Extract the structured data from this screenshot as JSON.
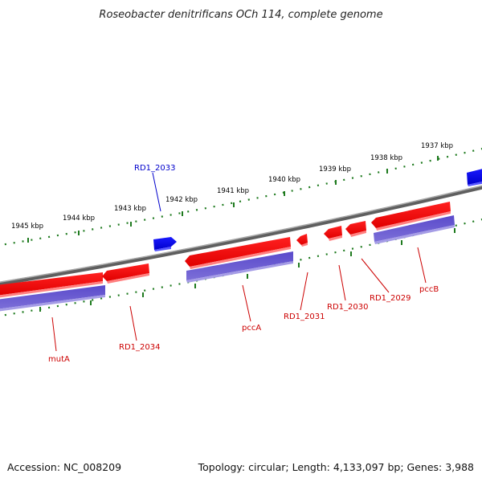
{
  "title": "Roseobacter denitrificans OCh 114, complete genome",
  "accession": "Accession: NC_008209",
  "topology": "Topology: circular; Length: 4,133,097 bp; Genes: 3,988",
  "colors": {
    "backbone": "#7a7a7a",
    "tick": "#1e7a1e",
    "gene_forward": "#ff0000",
    "gene_reverse": "#0000ff",
    "cds": "#6a5acd",
    "label_red": "#cc0000",
    "label_blue": "#0000cc"
  },
  "scale": {
    "unit": "kbp",
    "ticks": [
      {
        "label": "1945 kbp"
      },
      {
        "label": "1944 kbp"
      },
      {
        "label": "1943 kbp"
      },
      {
        "label": "1942 kbp"
      },
      {
        "label": "1941 kbp"
      },
      {
        "label": "1940 kbp"
      },
      {
        "label": "1939 kbp"
      },
      {
        "label": "1938 kbp"
      },
      {
        "label": "1937 kbp"
      }
    ]
  },
  "genes": [
    {
      "label": "RD1_2033",
      "strand": "outer",
      "color_name": "blue"
    },
    {
      "label": "mutA",
      "strand": "inner",
      "color_name": "red"
    },
    {
      "label": "RD1_2034",
      "strand": "inner",
      "color_name": "red"
    },
    {
      "label": "pccA",
      "strand": "inner",
      "color_name": "red"
    },
    {
      "label": "RD1_2031",
      "strand": "inner",
      "color_name": "red"
    },
    {
      "label": "RD1_2030",
      "strand": "inner",
      "color_name": "red"
    },
    {
      "label": "RD1_2029",
      "strand": "inner",
      "color_name": "red"
    },
    {
      "label": "pccB",
      "strand": "inner",
      "color_name": "red"
    }
  ]
}
